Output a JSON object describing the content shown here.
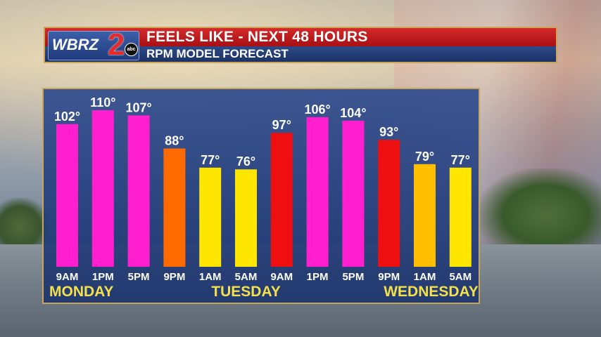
{
  "header": {
    "logo_text": "WBRZ",
    "logo_number": "2",
    "logo_network": "abc",
    "title": "FEELS LIKE - NEXT 48 HOURS",
    "subtitle": "RPM MODEL FORECAST"
  },
  "colors": {
    "header_red": "#c41a1f",
    "header_blue": "#223c78",
    "panel_blue": "#25458c",
    "border_gold": "#c9a55a",
    "day_label_yellow": "#f4e04d",
    "bar_magenta": "#ff1fcf",
    "bar_orange": "#ff6a00",
    "bar_red": "#ee1010",
    "bar_amber": "#ffbf00",
    "bar_yellow": "#ffe600"
  },
  "chart_data": {
    "type": "bar",
    "title": "FEELS LIKE - NEXT 48 HOURS",
    "subtitle": "RPM MODEL FORECAST",
    "categories": [
      "9AM",
      "1PM",
      "5PM",
      "9PM",
      "1AM",
      "5AM",
      "9AM",
      "1PM",
      "5PM",
      "9PM",
      "1AM",
      "5AM"
    ],
    "values": [
      102,
      110,
      107,
      88,
      77,
      76,
      97,
      106,
      104,
      93,
      79,
      77
    ],
    "value_labels": [
      "102°",
      "110°",
      "107°",
      "88°",
      "77°",
      "76°",
      "97°",
      "106°",
      "104°",
      "93°",
      "79°",
      "77°"
    ],
    "bar_colors": [
      "#ff1fcf",
      "#ff1fcf",
      "#ff1fcf",
      "#ff6a00",
      "#ffe600",
      "#ffe600",
      "#ee1010",
      "#ff1fcf",
      "#ff1fcf",
      "#ee1010",
      "#ffbf00",
      "#ffe600"
    ],
    "day_labels": [
      {
        "text": "MONDAY",
        "align": "left",
        "category_index": 0
      },
      {
        "text": "TUESDAY",
        "align": "center",
        "category_index": 5
      },
      {
        "text": "WEDNESDAY",
        "align": "right",
        "category_index": 11
      }
    ],
    "ylim": [
      20,
      110
    ],
    "grid": false,
    "xlabel": "",
    "ylabel": ""
  }
}
